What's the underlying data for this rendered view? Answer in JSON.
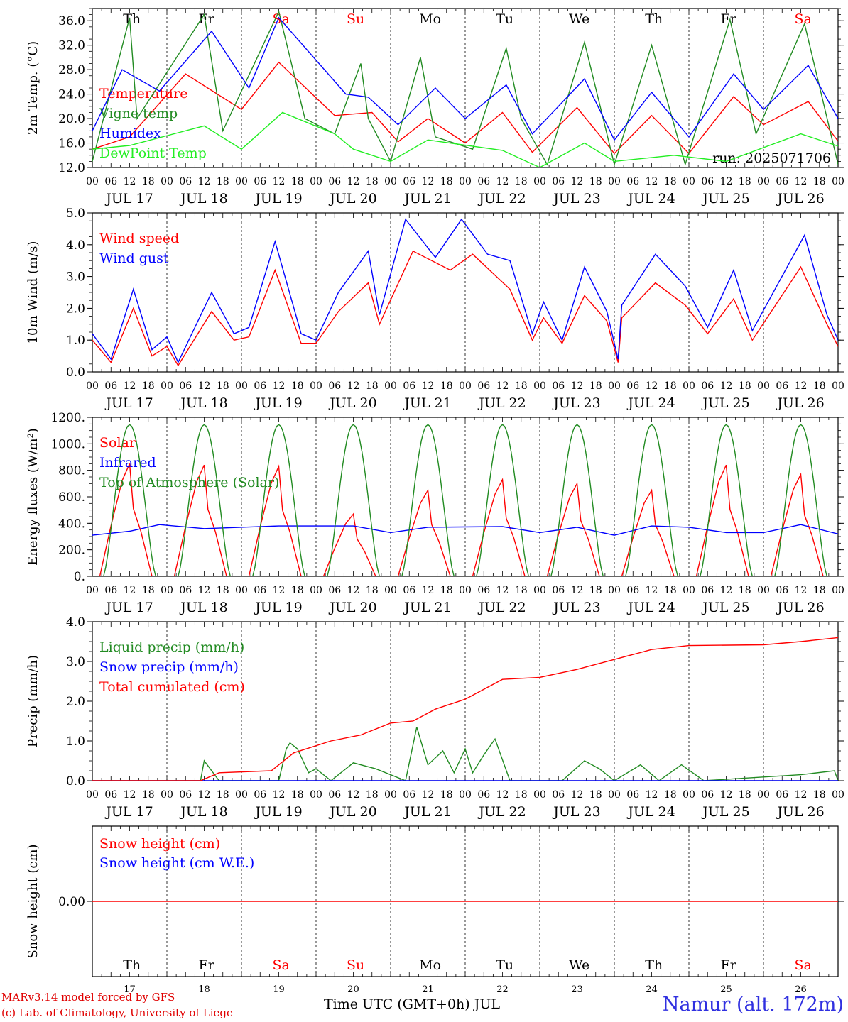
{
  "chart_data": [
    {
      "type": "line",
      "ylabel": "2m Temp. (°C)",
      "ylim": [
        12,
        38
      ],
      "yticks": [
        "12.0",
        "16.0",
        "20.0",
        "24.0",
        "28.0",
        "32.0",
        "36.0"
      ],
      "ytick_values": [
        12,
        16,
        20,
        24,
        28,
        32,
        36
      ],
      "weekdays": [
        "Th",
        "Fr",
        "Sa",
        "Su",
        "Mo",
        "Tu",
        "We",
        "Th",
        "Fr",
        "Sa"
      ],
      "run_label": "run: 2025071706",
      "series": [
        {
          "name": "Temperature",
          "color": "#ff0000",
          "points": [
            [
              0,
              15
            ],
            [
              0.5,
              17
            ],
            [
              1.25,
              27.3
            ],
            [
              2,
              21.5
            ],
            [
              2.5,
              29.2
            ],
            [
              3.25,
              20.5
            ],
            [
              3.75,
              21
            ],
            [
              4.1,
              16.2
            ],
            [
              4.5,
              20
            ],
            [
              5,
              16
            ],
            [
              5.5,
              21
            ],
            [
              5.9,
              14.5
            ],
            [
              6.5,
              21.8
            ],
            [
              7,
              14.3
            ],
            [
              7.5,
              20.5
            ],
            [
              8,
              14.3
            ],
            [
              8.6,
              23.6
            ],
            [
              9,
              19
            ],
            [
              9.6,
              22.8
            ],
            [
              10,
              16.3
            ]
          ]
        },
        {
          "name": "Vigne temp",
          "color": "#228b22",
          "points": [
            [
              0,
              13
            ],
            [
              0.5,
              36.5
            ],
            [
              0.6,
              20
            ],
            [
              1.5,
              37
            ],
            [
              1.75,
              18
            ],
            [
              2.5,
              37.5
            ],
            [
              2.85,
              20
            ],
            [
              3.25,
              17.5
            ],
            [
              3.6,
              29
            ],
            [
              3.7,
              20
            ],
            [
              4,
              13
            ],
            [
              4.4,
              30
            ],
            [
              4.6,
              17
            ],
            [
              5.1,
              15
            ],
            [
              5.55,
              31.5
            ],
            [
              5.75,
              20
            ],
            [
              6.1,
              12.5
            ],
            [
              6.6,
              32.5
            ],
            [
              7,
              12.5
            ],
            [
              7.5,
              32
            ],
            [
              7.95,
              12.5
            ],
            [
              8.55,
              36.2
            ],
            [
              8.9,
              17.5
            ],
            [
              9.55,
              35.5
            ],
            [
              10,
              12.5
            ]
          ]
        },
        {
          "name": "Humidex",
          "color": "#0000ff",
          "points": [
            [
              0,
              18
            ],
            [
              0.4,
              28
            ],
            [
              0.9,
              24.5
            ],
            [
              1.6,
              34.3
            ],
            [
              2.1,
              25
            ],
            [
              2.5,
              36.5
            ],
            [
              3.4,
              24
            ],
            [
              3.7,
              23.5
            ],
            [
              4.1,
              19
            ],
            [
              4.6,
              25
            ],
            [
              5,
              20
            ],
            [
              5.55,
              25.5
            ],
            [
              5.9,
              17.5
            ],
            [
              6.6,
              26.5
            ],
            [
              7,
              16.5
            ],
            [
              7.5,
              24.3
            ],
            [
              8,
              17
            ],
            [
              8.6,
              27.3
            ],
            [
              9,
              21.5
            ],
            [
              9.6,
              28.7
            ],
            [
              10,
              20
            ]
          ]
        },
        {
          "name": "DewPoint Temp",
          "color": "#22ee22",
          "points": [
            [
              0,
              15
            ],
            [
              0.5,
              15.6
            ],
            [
              1.5,
              18.8
            ],
            [
              2,
              15
            ],
            [
              2.55,
              21
            ],
            [
              3.25,
              17.5
            ],
            [
              3.5,
              15
            ],
            [
              4,
              13
            ],
            [
              4.5,
              16.5
            ],
            [
              5.5,
              14.8
            ],
            [
              6,
              12
            ],
            [
              6.6,
              16
            ],
            [
              7,
              13
            ],
            [
              7.8,
              14
            ],
            [
              8.5,
              13
            ],
            [
              9.5,
              17.5
            ],
            [
              10,
              15.5
            ]
          ]
        }
      ]
    },
    {
      "type": "line",
      "ylabel": "10m Wind (m/s)",
      "ylim": [
        0,
        5
      ],
      "yticks": [
        "0.0",
        "1.0",
        "2.0",
        "3.0",
        "4.0",
        "5.0"
      ],
      "ytick_values": [
        0,
        1,
        2,
        3,
        4,
        5
      ],
      "series": [
        {
          "name": "Wind speed",
          "color": "#ff0000",
          "points": [
            [
              0,
              1.0
            ],
            [
              0.25,
              0.3
            ],
            [
              0.55,
              2.0
            ],
            [
              0.8,
              0.5
            ],
            [
              1,
              0.8
            ],
            [
              1.15,
              0.2
            ],
            [
              1.6,
              1.9
            ],
            [
              1.9,
              1.0
            ],
            [
              2.1,
              1.1
            ],
            [
              2.45,
              3.2
            ],
            [
              2.8,
              0.9
            ],
            [
              3,
              0.9
            ],
            [
              3.3,
              1.9
            ],
            [
              3.7,
              2.8
            ],
            [
              3.85,
              1.5
            ],
            [
              4.3,
              3.8
            ],
            [
              4.8,
              3.2
            ],
            [
              5.1,
              3.7
            ],
            [
              5.6,
              2.6
            ],
            [
              5.9,
              1.0
            ],
            [
              6.05,
              1.7
            ],
            [
              6.3,
              0.9
            ],
            [
              6.6,
              2.4
            ],
            [
              6.9,
              1.6
            ],
            [
              7.05,
              0.3
            ],
            [
              7.1,
              1.7
            ],
            [
              7.55,
              2.8
            ],
            [
              7.95,
              2.1
            ],
            [
              8.25,
              1.2
            ],
            [
              8.6,
              2.3
            ],
            [
              8.85,
              1.0
            ],
            [
              9.5,
              3.3
            ],
            [
              9.85,
              1.5
            ],
            [
              10,
              0.8
            ]
          ]
        },
        {
          "name": "Wind gust",
          "color": "#0000ff",
          "points": [
            [
              0,
              1.2
            ],
            [
              0.25,
              0.4
            ],
            [
              0.55,
              2.6
            ],
            [
              0.8,
              0.7
            ],
            [
              1,
              1.1
            ],
            [
              1.15,
              0.3
            ],
            [
              1.6,
              2.5
            ],
            [
              1.9,
              1.2
            ],
            [
              2.1,
              1.4
            ],
            [
              2.45,
              4.1
            ],
            [
              2.8,
              1.2
            ],
            [
              3,
              1.0
            ],
            [
              3.3,
              2.5
            ],
            [
              3.7,
              3.8
            ],
            [
              3.85,
              1.8
            ],
            [
              4.2,
              4.8
            ],
            [
              4.6,
              3.6
            ],
            [
              4.95,
              4.8
            ],
            [
              5.3,
              3.7
            ],
            [
              5.6,
              3.5
            ],
            [
              5.9,
              1.2
            ],
            [
              6.05,
              2.2
            ],
            [
              6.3,
              1.0
            ],
            [
              6.6,
              3.3
            ],
            [
              6.9,
              1.9
            ],
            [
              7.05,
              0.4
            ],
            [
              7.1,
              2.1
            ],
            [
              7.55,
              3.7
            ],
            [
              7.95,
              2.7
            ],
            [
              8.25,
              1.4
            ],
            [
              8.6,
              3.2
            ],
            [
              8.85,
              1.3
            ],
            [
              9.55,
              4.3
            ],
            [
              9.85,
              1.8
            ],
            [
              10,
              1.0
            ]
          ]
        }
      ]
    },
    {
      "type": "line",
      "ylabel": "Energy fluxes (W/m²)",
      "ylim": [
        0,
        1200
      ],
      "yticks": [
        "0.",
        "200.",
        "400.",
        "600.",
        "800.",
        "1000.",
        "1200."
      ],
      "ytick_values": [
        0,
        200,
        400,
        600,
        800,
        1000,
        1200
      ],
      "series": [
        {
          "name": "Solar",
          "color": "#ff0000",
          "peaks": [
            850,
            840,
            830,
            470,
            650,
            730,
            700,
            650,
            840,
            770
          ]
        },
        {
          "name": "Infrared",
          "color": "#0000ff",
          "points": [
            [
              0,
              310
            ],
            [
              0.5,
              340
            ],
            [
              0.9,
              390
            ],
            [
              1.5,
              360
            ],
            [
              2.5,
              380
            ],
            [
              3.5,
              380
            ],
            [
              4,
              330
            ],
            [
              4.5,
              370
            ],
            [
              5.5,
              375
            ],
            [
              6,
              330
            ],
            [
              6.5,
              370
            ],
            [
              7,
              310
            ],
            [
              7.5,
              380
            ],
            [
              8,
              370
            ],
            [
              8.5,
              330
            ],
            [
              9,
              330
            ],
            [
              9.5,
              390
            ],
            [
              10,
              320
            ]
          ]
        },
        {
          "name": "Top of Atmosphere (Solar)",
          "color": "#228b22",
          "peak": 1145
        }
      ]
    },
    {
      "type": "line",
      "ylabel": "Precip (mm/h)",
      "ylim": [
        0,
        4
      ],
      "yticks": [
        "0.0",
        "1.0",
        "2.0",
        "3.0",
        "4.0"
      ],
      "ytick_values": [
        0,
        1,
        2,
        3,
        4
      ],
      "series": [
        {
          "name": "Liquid precip (mm/h)",
          "color": "#228b22",
          "points": [
            [
              0,
              0
            ],
            [
              1.45,
              0
            ],
            [
              1.5,
              0.5
            ],
            [
              1.7,
              0
            ],
            [
              2.5,
              0
            ],
            [
              2.6,
              0.8
            ],
            [
              2.65,
              0.95
            ],
            [
              2.75,
              0.8
            ],
            [
              2.9,
              0.2
            ],
            [
              3,
              0.3
            ],
            [
              3.2,
              0
            ],
            [
              3.5,
              0.45
            ],
            [
              3.8,
              0.3
            ],
            [
              4.2,
              0
            ],
            [
              4.35,
              1.35
            ],
            [
              4.5,
              0.4
            ],
            [
              4.7,
              0.75
            ],
            [
              4.85,
              0.2
            ],
            [
              5,
              0.8
            ],
            [
              5.1,
              0.2
            ],
            [
              5.25,
              0.65
            ],
            [
              5.4,
              1.05
            ],
            [
              5.6,
              0
            ],
            [
              6.3,
              0
            ],
            [
              6.6,
              0.5
            ],
            [
              6.8,
              0.3
            ],
            [
              7,
              0
            ],
            [
              7.35,
              0.4
            ],
            [
              7.6,
              0
            ],
            [
              7.9,
              0.4
            ],
            [
              8.2,
              0
            ],
            [
              9.5,
              0.15
            ],
            [
              9.95,
              0.25
            ],
            [
              10,
              0
            ]
          ]
        },
        {
          "name": "Snow precip (mm/h)",
          "color": "#0000ff",
          "points": [
            [
              0,
              0
            ],
            [
              10,
              0
            ]
          ]
        },
        {
          "name": "Total cumulated (cm)",
          "color": "#ff0000",
          "points": [
            [
              0,
              0
            ],
            [
              1.45,
              0
            ],
            [
              1.7,
              0.2
            ],
            [
              2.4,
              0.25
            ],
            [
              2.7,
              0.7
            ],
            [
              3.2,
              1.0
            ],
            [
              3.6,
              1.15
            ],
            [
              4,
              1.45
            ],
            [
              4.3,
              1.5
            ],
            [
              4.6,
              1.8
            ],
            [
              5,
              2.05
            ],
            [
              5.5,
              2.55
            ],
            [
              6,
              2.6
            ],
            [
              6.5,
              2.8
            ],
            [
              7,
              3.05
            ],
            [
              7.5,
              3.3
            ],
            [
              8,
              3.4
            ],
            [
              9,
              3.42
            ],
            [
              9.5,
              3.5
            ],
            [
              10,
              3.6
            ]
          ]
        }
      ]
    },
    {
      "type": "line",
      "ylabel": "Snow height (cm)",
      "ylim": [
        -1,
        1
      ],
      "yticks": [
        "0.00"
      ],
      "ytick_values": [
        0
      ],
      "weekdays": [
        "Th",
        "Fr",
        "Sa",
        "Su",
        "Mo",
        "Tu",
        "We",
        "Th",
        "Fr",
        "Sa"
      ],
      "daynums": [
        "17",
        "18",
        "19",
        "20",
        "21",
        "22",
        "23",
        "24",
        "25",
        "26"
      ],
      "series": [
        {
          "name": "Snow height (cm)",
          "color": "#ff0000",
          "points": [
            [
              0,
              0
            ],
            [
              10,
              0
            ]
          ]
        },
        {
          "name": "Snow height (cm W.E.)",
          "color": "#0000ff",
          "points": []
        }
      ]
    }
  ],
  "hour_ticks": [
    "00",
    "06",
    "12",
    "18"
  ],
  "days": [
    "JUL 17",
    "JUL 18",
    "JUL 19",
    "JUL 20",
    "JUL 21",
    "JUL 22",
    "JUL 23",
    "JUL 24",
    "JUL 25",
    "JUL 26"
  ],
  "weekend_color": "#ff0000",
  "footer": {
    "credit1": "MARv3.14 model forced by GFS",
    "credit2": "(c) Lab. of Climatology, University of Liege",
    "xtitle": "Time UTC (GMT+0h) JUL",
    "station": "Namur (alt. 172m)"
  }
}
